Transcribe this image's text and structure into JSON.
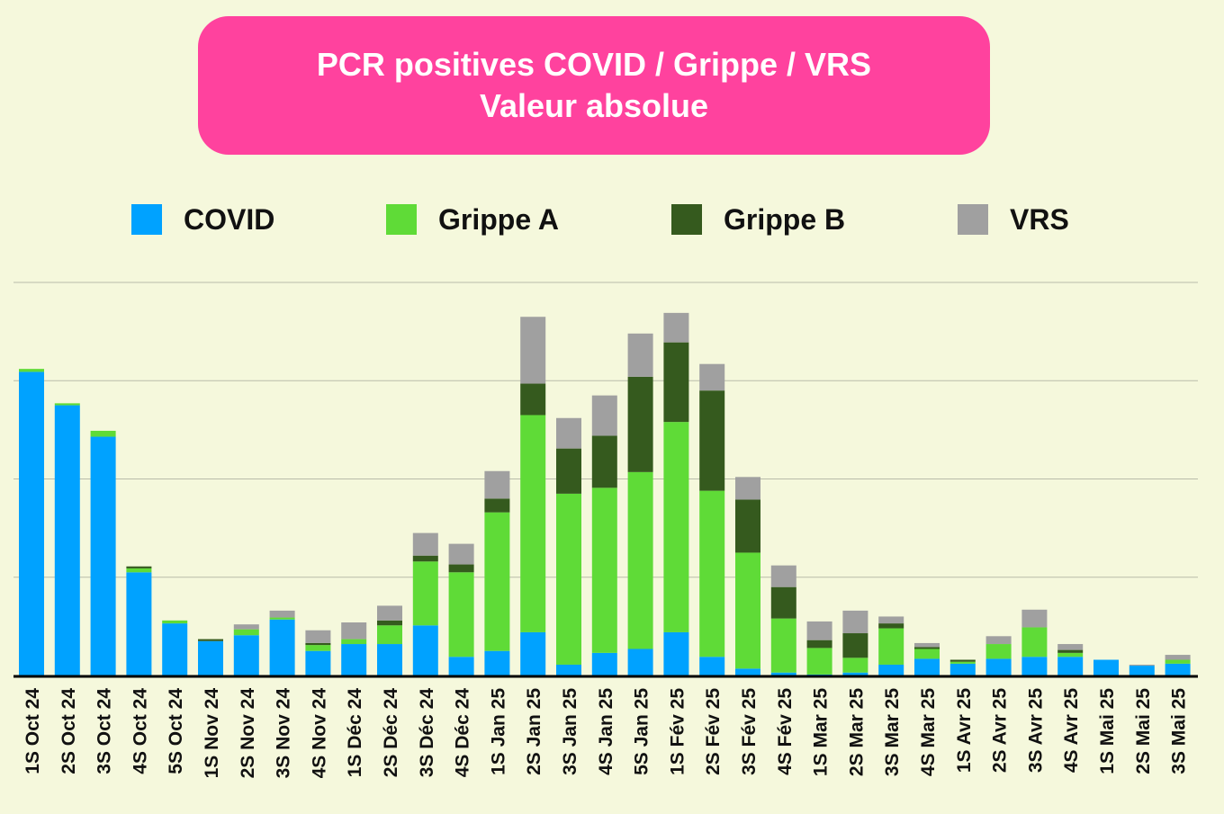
{
  "chart_data": {
    "type": "bar",
    "stacked": true,
    "title": "PCR positives COVID / Grippe / VRS",
    "subtitle": "Valeur absolue",
    "xlabel": "",
    "ylabel": "",
    "ylim": [
      0,
      400
    ],
    "grid": true,
    "legend_position": "top",
    "categories": [
      "1S Oct 24",
      "2S Oct 24",
      "3S Oct 24",
      "4S Oct 24",
      "5S Oct 24",
      "1S Nov 24",
      "2S Nov 24",
      "3S Nov 24",
      "4S Nov 24",
      "1S Déc 24",
      "2S Déc 24",
      "3S Déc 24",
      "4S Déc 24",
      "1S Jan 25",
      "2S Jan 25",
      "3S Jan 25",
      "4S Jan 25",
      "5S Jan 25",
      "1S Fév 25",
      "2S Fév 25",
      "3S Fév 25",
      "4S Fév 25",
      "1S Mar 25",
      "2S Mar 25",
      "3S Mar 25",
      "4S Mar 25",
      "1S Avr 25",
      "2S Avr 25",
      "3S Avr 25",
      "4S Avr 25",
      "1S Mai 25",
      "2S Mai 25",
      "3S Mai 25"
    ],
    "series": [
      {
        "name": "COVID",
        "color": "#00a2ff",
        "values": [
          309,
          275,
          243,
          105,
          53,
          35,
          41,
          57,
          25,
          32,
          32,
          51,
          19,
          25,
          44,
          11,
          23,
          27,
          44,
          19,
          7,
          3,
          1,
          3,
          11,
          17,
          12,
          17,
          19,
          19,
          16,
          10,
          12
        ]
      },
      {
        "name": "Grippe A",
        "color": "#5fdb37",
        "values": [
          3,
          2,
          6,
          4,
          3,
          0,
          6,
          2,
          6,
          5,
          19,
          65,
          86,
          141,
          221,
          174,
          168,
          180,
          214,
          169,
          118,
          55,
          27,
          15,
          37,
          10,
          2,
          15,
          30,
          4,
          0,
          0,
          4
        ]
      },
      {
        "name": "Grippe B",
        "color": "#355a1e",
        "values": [
          0,
          0,
          0,
          2,
          0,
          2,
          0,
          0,
          2,
          0,
          5,
          6,
          8,
          14,
          32,
          46,
          53,
          97,
          81,
          102,
          54,
          32,
          8,
          25,
          5,
          2,
          2,
          0,
          0,
          3,
          0,
          0,
          0
        ]
      },
      {
        "name": "VRS",
        "color": "#a0a0a0",
        "values": [
          0,
          0,
          0,
          0,
          0,
          0,
          5,
          7,
          13,
          17,
          15,
          23,
          21,
          28,
          68,
          31,
          41,
          44,
          30,
          27,
          23,
          22,
          19,
          23,
          7,
          4,
          0,
          8,
          18,
          6,
          0,
          1,
          5
        ]
      }
    ]
  }
}
